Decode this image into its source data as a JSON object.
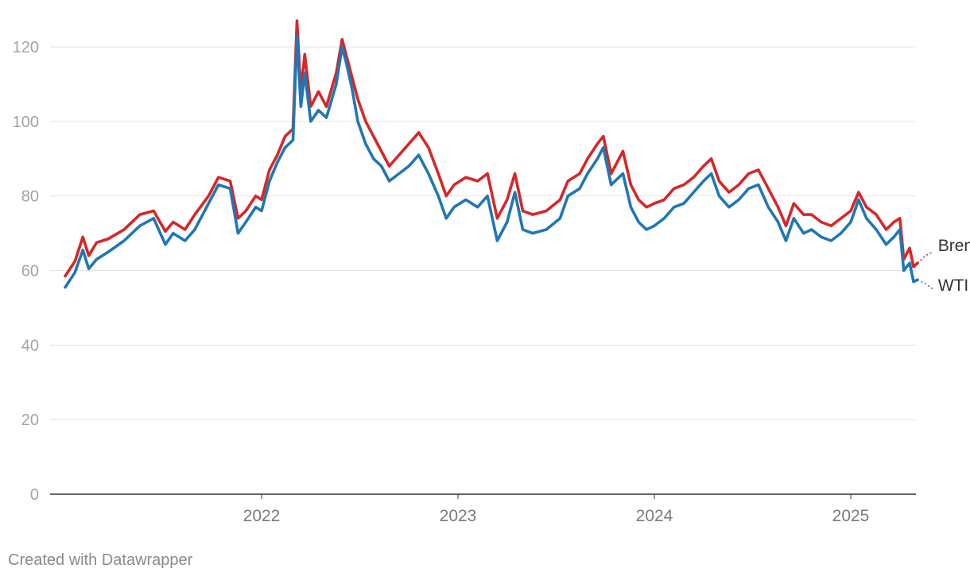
{
  "chart_data": {
    "type": "line",
    "title": "",
    "xlabel": "",
    "ylabel": "",
    "ylim": [
      0,
      128
    ],
    "x_domain": [
      2021.0,
      2025.42
    ],
    "yticks": [
      0,
      20,
      40,
      60,
      80,
      100,
      120
    ],
    "xticks": [
      {
        "value": 2022,
        "label": "2022"
      },
      {
        "value": 2023,
        "label": "2023"
      },
      {
        "value": 2024,
        "label": "2024"
      },
      {
        "value": 2025,
        "label": "2025"
      }
    ],
    "series": [
      {
        "name": "Brent",
        "color": "#d62728",
        "points": [
          [
            2021.0,
            58.5
          ],
          [
            2021.05,
            62.5
          ],
          [
            2021.09,
            69.0
          ],
          [
            2021.12,
            64.0
          ],
          [
            2021.16,
            67.5
          ],
          [
            2021.22,
            68.5
          ],
          [
            2021.3,
            71.0
          ],
          [
            2021.38,
            75.0
          ],
          [
            2021.45,
            76.0
          ],
          [
            2021.51,
            70.5
          ],
          [
            2021.55,
            73.0
          ],
          [
            2021.61,
            71.0
          ],
          [
            2021.66,
            75.0
          ],
          [
            2021.73,
            80.0
          ],
          [
            2021.78,
            85.0
          ],
          [
            2021.84,
            84.0
          ],
          [
            2021.88,
            74.0
          ],
          [
            2021.92,
            76.0
          ],
          [
            2021.97,
            80.0
          ],
          [
            2022.0,
            79.0
          ],
          [
            2022.04,
            87.0
          ],
          [
            2022.08,
            91.0
          ],
          [
            2022.12,
            96.0
          ],
          [
            2022.16,
            98.0
          ],
          [
            2022.18,
            127.0
          ],
          [
            2022.2,
            108.0
          ],
          [
            2022.22,
            118.0
          ],
          [
            2022.25,
            104.0
          ],
          [
            2022.29,
            108.0
          ],
          [
            2022.33,
            104.0
          ],
          [
            2022.38,
            113.0
          ],
          [
            2022.41,
            122.0
          ],
          [
            2022.43,
            118.0
          ],
          [
            2022.46,
            112.0
          ],
          [
            2022.49,
            106.0
          ],
          [
            2022.53,
            100.0
          ],
          [
            2022.57,
            96.0
          ],
          [
            2022.61,
            92.0
          ],
          [
            2022.65,
            88.0
          ],
          [
            2022.7,
            91.0
          ],
          [
            2022.75,
            94.0
          ],
          [
            2022.8,
            97.0
          ],
          [
            2022.85,
            93.0
          ],
          [
            2022.9,
            86.0
          ],
          [
            2022.94,
            80.0
          ],
          [
            2022.98,
            83.0
          ],
          [
            2023.04,
            85.0
          ],
          [
            2023.1,
            84.0
          ],
          [
            2023.15,
            86.0
          ],
          [
            2023.2,
            74.0
          ],
          [
            2023.25,
            79.0
          ],
          [
            2023.29,
            86.0
          ],
          [
            2023.33,
            76.0
          ],
          [
            2023.38,
            75.0
          ],
          [
            2023.45,
            76.0
          ],
          [
            2023.52,
            79.0
          ],
          [
            2023.56,
            84.0
          ],
          [
            2023.62,
            86.0
          ],
          [
            2023.66,
            90.0
          ],
          [
            2023.71,
            94.0
          ],
          [
            2023.74,
            96.0
          ],
          [
            2023.78,
            86.0
          ],
          [
            2023.84,
            92.0
          ],
          [
            2023.88,
            83.0
          ],
          [
            2023.92,
            79.0
          ],
          [
            2023.96,
            77.0
          ],
          [
            2024.0,
            78.0
          ],
          [
            2024.05,
            79.0
          ],
          [
            2024.1,
            82.0
          ],
          [
            2024.15,
            83.0
          ],
          [
            2024.2,
            85.0
          ],
          [
            2024.25,
            88.0
          ],
          [
            2024.29,
            90.0
          ],
          [
            2024.33,
            84.0
          ],
          [
            2024.38,
            81.0
          ],
          [
            2024.43,
            83.0
          ],
          [
            2024.48,
            86.0
          ],
          [
            2024.53,
            87.0
          ],
          [
            2024.58,
            82.0
          ],
          [
            2024.63,
            77.0
          ],
          [
            2024.67,
            72.0
          ],
          [
            2024.71,
            78.0
          ],
          [
            2024.76,
            75.0
          ],
          [
            2024.8,
            75.0
          ],
          [
            2024.85,
            73.0
          ],
          [
            2024.9,
            72.0
          ],
          [
            2024.95,
            74.0
          ],
          [
            2025.0,
            76.0
          ],
          [
            2025.04,
            81.0
          ],
          [
            2025.08,
            77.0
          ],
          [
            2025.13,
            75.0
          ],
          [
            2025.18,
            71.0
          ],
          [
            2025.22,
            73.0
          ],
          [
            2025.25,
            74.0
          ],
          [
            2025.27,
            63.0
          ],
          [
            2025.3,
            66.0
          ],
          [
            2025.32,
            61.0
          ],
          [
            2025.34,
            62.0
          ]
        ],
        "projection": [
          [
            2025.34,
            62.0
          ],
          [
            2025.38,
            64.0
          ],
          [
            2025.42,
            65.0
          ]
        ]
      },
      {
        "name": "WTI",
        "color": "#1f77b4",
        "points": [
          [
            2021.0,
            55.5
          ],
          [
            2021.05,
            59.5
          ],
          [
            2021.09,
            65.5
          ],
          [
            2021.12,
            60.5
          ],
          [
            2021.16,
            63.0
          ],
          [
            2021.22,
            65.0
          ],
          [
            2021.3,
            68.0
          ],
          [
            2021.38,
            72.0
          ],
          [
            2021.45,
            74.0
          ],
          [
            2021.51,
            67.0
          ],
          [
            2021.55,
            70.0
          ],
          [
            2021.61,
            68.0
          ],
          [
            2021.66,
            71.0
          ],
          [
            2021.73,
            78.0
          ],
          [
            2021.78,
            83.0
          ],
          [
            2021.84,
            82.0
          ],
          [
            2021.88,
            70.0
          ],
          [
            2021.92,
            73.0
          ],
          [
            2021.97,
            77.0
          ],
          [
            2022.0,
            76.0
          ],
          [
            2022.04,
            84.0
          ],
          [
            2022.08,
            89.0
          ],
          [
            2022.12,
            93.0
          ],
          [
            2022.16,
            95.0
          ],
          [
            2022.18,
            123.0
          ],
          [
            2022.2,
            104.0
          ],
          [
            2022.22,
            113.0
          ],
          [
            2022.25,
            100.0
          ],
          [
            2022.29,
            103.0
          ],
          [
            2022.33,
            101.0
          ],
          [
            2022.38,
            110.0
          ],
          [
            2022.41,
            120.0
          ],
          [
            2022.43,
            116.0
          ],
          [
            2022.46,
            109.0
          ],
          [
            2022.49,
            100.0
          ],
          [
            2022.53,
            94.0
          ],
          [
            2022.57,
            90.0
          ],
          [
            2022.61,
            88.0
          ],
          [
            2022.65,
            84.0
          ],
          [
            2022.7,
            86.0
          ],
          [
            2022.75,
            88.0
          ],
          [
            2022.8,
            91.0
          ],
          [
            2022.85,
            86.0
          ],
          [
            2022.9,
            80.0
          ],
          [
            2022.94,
            74.0
          ],
          [
            2022.98,
            77.0
          ],
          [
            2023.04,
            79.0
          ],
          [
            2023.1,
            77.0
          ],
          [
            2023.15,
            80.0
          ],
          [
            2023.2,
            68.0
          ],
          [
            2023.25,
            73.0
          ],
          [
            2023.29,
            81.0
          ],
          [
            2023.33,
            71.0
          ],
          [
            2023.38,
            70.0
          ],
          [
            2023.45,
            71.0
          ],
          [
            2023.52,
            74.0
          ],
          [
            2023.56,
            80.0
          ],
          [
            2023.62,
            82.0
          ],
          [
            2023.66,
            86.0
          ],
          [
            2023.71,
            90.0
          ],
          [
            2023.74,
            93.0
          ],
          [
            2023.78,
            83.0
          ],
          [
            2023.84,
            86.0
          ],
          [
            2023.88,
            77.0
          ],
          [
            2023.92,
            73.0
          ],
          [
            2023.96,
            71.0
          ],
          [
            2024.0,
            72.0
          ],
          [
            2024.05,
            74.0
          ],
          [
            2024.1,
            77.0
          ],
          [
            2024.15,
            78.0
          ],
          [
            2024.2,
            81.0
          ],
          [
            2024.25,
            84.0
          ],
          [
            2024.29,
            86.0
          ],
          [
            2024.33,
            80.0
          ],
          [
            2024.38,
            77.0
          ],
          [
            2024.43,
            79.0
          ],
          [
            2024.48,
            82.0
          ],
          [
            2024.53,
            83.0
          ],
          [
            2024.58,
            77.0
          ],
          [
            2024.63,
            73.0
          ],
          [
            2024.67,
            68.0
          ],
          [
            2024.71,
            74.0
          ],
          [
            2024.76,
            70.0
          ],
          [
            2024.8,
            71.0
          ],
          [
            2024.85,
            69.0
          ],
          [
            2024.9,
            68.0
          ],
          [
            2024.95,
            70.0
          ],
          [
            2025.0,
            73.0
          ],
          [
            2025.04,
            79.0
          ],
          [
            2025.08,
            74.0
          ],
          [
            2025.13,
            71.0
          ],
          [
            2025.18,
            67.0
          ],
          [
            2025.22,
            69.0
          ],
          [
            2025.25,
            71.0
          ],
          [
            2025.27,
            60.0
          ],
          [
            2025.3,
            62.0
          ],
          [
            2025.32,
            57.0
          ],
          [
            2025.34,
            57.5
          ]
        ],
        "projection": [
          [
            2025.34,
            57.5
          ],
          [
            2025.38,
            56.5
          ],
          [
            2025.42,
            55.0
          ]
        ]
      }
    ]
  },
  "footer": {
    "credit": "Created with Datawrapper"
  }
}
